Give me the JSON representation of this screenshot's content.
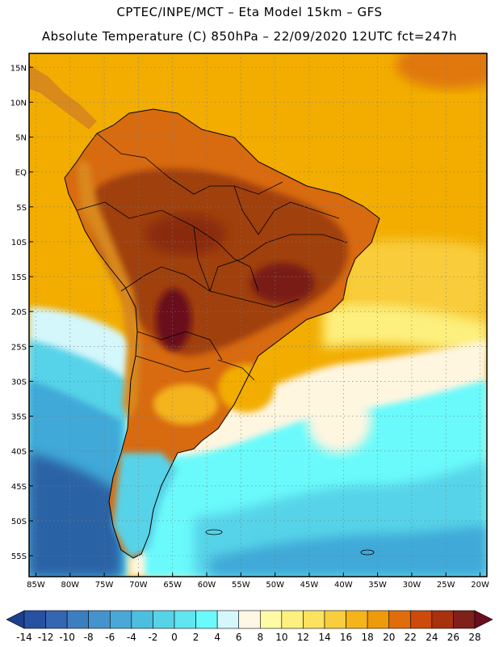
{
  "header": {
    "line1": "CPTEC/INPE/MCT –  Eta Model 15km – GFS",
    "line2": "Absolute Temperature (C) 850hPa – 22/09/2020 12UTC fct=247h"
  },
  "map": {
    "lat_labels": [
      "15N",
      "10N",
      "5N",
      "EQ",
      "5S",
      "10S",
      "15S",
      "20S",
      "25S",
      "30S",
      "35S",
      "40S",
      "45S",
      "50S",
      "55S"
    ],
    "lat_values": [
      15,
      10,
      5,
      0,
      -5,
      -10,
      -15,
      -20,
      -25,
      -30,
      -35,
      -40,
      -45,
      -50,
      -55
    ],
    "lon_labels": [
      "85W",
      "80W",
      "75W",
      "70W",
      "65W",
      "60W",
      "55W",
      "50W",
      "45W",
      "40W",
      "35W",
      "30W",
      "25W",
      "20W"
    ],
    "lon_values": [
      -85,
      -80,
      -75,
      -70,
      -65,
      -60,
      -55,
      -50,
      -45,
      -40,
      -35,
      -30,
      -25,
      -20
    ],
    "lat_range": [
      -58,
      17
    ],
    "lon_range": [
      -86,
      -19
    ],
    "grid": true,
    "colors": {
      "cold_deep": "#2b62a6",
      "cold_mid": "#3fa9d8",
      "cyan": "#67f5fb",
      "pale": "#fff6e0",
      "warm_ocean": "#f2ad00",
      "land_warm": "#d86a10",
      "land_hot": "#a0400b",
      "hot_core": "#7a1e13"
    }
  },
  "colorbar": {
    "labels": [
      "-14",
      "-12",
      "-10",
      "-8",
      "-6",
      "-4",
      "-2",
      "0",
      "2",
      "4",
      "6",
      "8",
      "10",
      "12",
      "14",
      "16",
      "18",
      "20",
      "22",
      "24",
      "26",
      "28"
    ],
    "colors": [
      "#1c3f8f",
      "#2752a2",
      "#3466b2",
      "#3d7ec0",
      "#4593cd",
      "#49a8d7",
      "#4ebedf",
      "#57d3e8",
      "#5fe6f0",
      "#6afafb",
      "#d4f7fb",
      "#fff6e6",
      "#fffaa6",
      "#fdf07e",
      "#fce25e",
      "#f8ce3e",
      "#f4b41a",
      "#ee9a0a",
      "#e06c0a",
      "#cc4a0a",
      "#a8320e",
      "#80201a",
      "#6a0e1e"
    ]
  }
}
